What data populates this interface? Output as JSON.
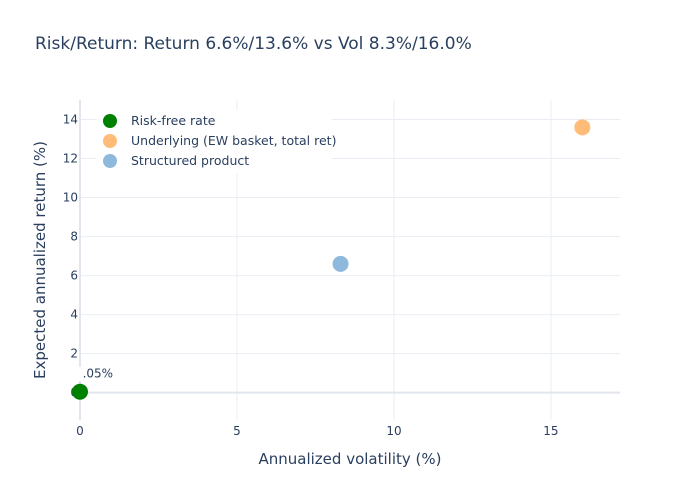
{
  "chart_data": {
    "type": "scatter",
    "title": "Risk/Return: Return 6.6%/13.6% vs Vol 8.3%/16.0%",
    "xlabel": "Annualized volatility (%)",
    "ylabel": "Expected annualized return (%)",
    "xlim": [
      0,
      17.2
    ],
    "ylim": [
      -1.4,
      15
    ],
    "x_ticks": [
      "0",
      "5",
      "10",
      "15"
    ],
    "y_ticks": [
      "0",
      "2",
      "4",
      "6",
      "8",
      "10",
      "12",
      "14"
    ],
    "grid": true,
    "legend_position": "top-left",
    "series": [
      {
        "name": "Risk-free rate",
        "x": [
          0.0
        ],
        "y": [
          0.05
        ],
        "color": "#008000",
        "label": "0.05%"
      },
      {
        "name": "Underlying (EW basket, total ret)",
        "x": [
          16.0
        ],
        "y": [
          13.6
        ],
        "color": "#ffbb78",
        "label": ""
      },
      {
        "name": "Structured product",
        "x": [
          8.3
        ],
        "y": [
          6.6
        ],
        "color": "#8fb9dc",
        "label": ""
      }
    ]
  }
}
